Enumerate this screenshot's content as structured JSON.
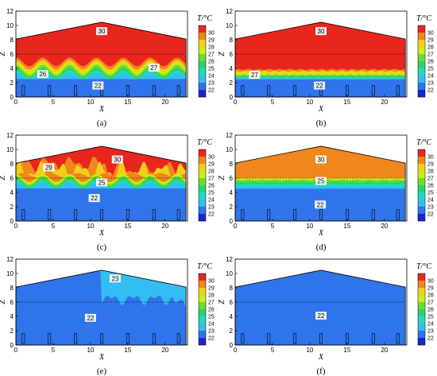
{
  "chart_data": {
    "type": "contour",
    "xlabel": "X",
    "ylabel": "Z",
    "xticks": [
      "0",
      "5",
      "10",
      "15",
      "20"
    ],
    "yticks": [
      "0",
      "2",
      "4",
      "6",
      "8",
      "10",
      "12"
    ],
    "xlim": [
      0,
      23
    ],
    "ylim": [
      0,
      12
    ],
    "colorbar": {
      "title": "T/°C",
      "levels": [
        30,
        29,
        28,
        27,
        26,
        25,
        24,
        23,
        22
      ],
      "colors": [
        "#e8261e",
        "#f0861c",
        "#f2ce1a",
        "#c9ec1a",
        "#6edc2a",
        "#2bd270",
        "#23d9c0",
        "#34bdf2",
        "#2f74ea",
        "#1a25d2"
      ]
    },
    "panels": [
      {
        "caption": "(a)",
        "labels": [
          {
            "text": "30",
            "x": 11.5,
            "z": 9.2
          },
          {
            "text": "26",
            "x": 3.6,
            "z": 3.2
          },
          {
            "text": "27",
            "x": 18.5,
            "z": 4.1
          },
          {
            "text": "22",
            "x": 11.0,
            "z": 1.6
          }
        ]
      },
      {
        "caption": "(b)",
        "labels": [
          {
            "text": "30",
            "x": 11.5,
            "z": 9.2
          },
          {
            "text": "27",
            "x": 2.6,
            "z": 3.1
          },
          {
            "text": "22",
            "x": 11.3,
            "z": 1.6
          }
        ]
      },
      {
        "caption": "(c)",
        "labels": [
          {
            "text": "30",
            "x": 13.6,
            "z": 8.6
          },
          {
            "text": "29",
            "x": 4.4,
            "z": 7.5
          },
          {
            "text": "25",
            "x": 11.5,
            "z": 5.4
          },
          {
            "text": "22",
            "x": 10.5,
            "z": 3.2
          }
        ]
      },
      {
        "caption": "(d)",
        "labels": [
          {
            "text": "30",
            "x": 11.5,
            "z": 8.6
          },
          {
            "text": "25",
            "x": 11.5,
            "z": 5.6
          },
          {
            "text": "22",
            "x": 11.4,
            "z": 2.3
          }
        ]
      },
      {
        "caption": "(e)",
        "labels": [
          {
            "text": "23",
            "x": 13.3,
            "z": 9.3
          },
          {
            "text": "22",
            "x": 10.0,
            "z": 3.8
          }
        ]
      },
      {
        "caption": "(f)",
        "labels": [
          {
            "text": "22",
            "x": 11.5,
            "z": 4.1
          }
        ]
      }
    ]
  }
}
